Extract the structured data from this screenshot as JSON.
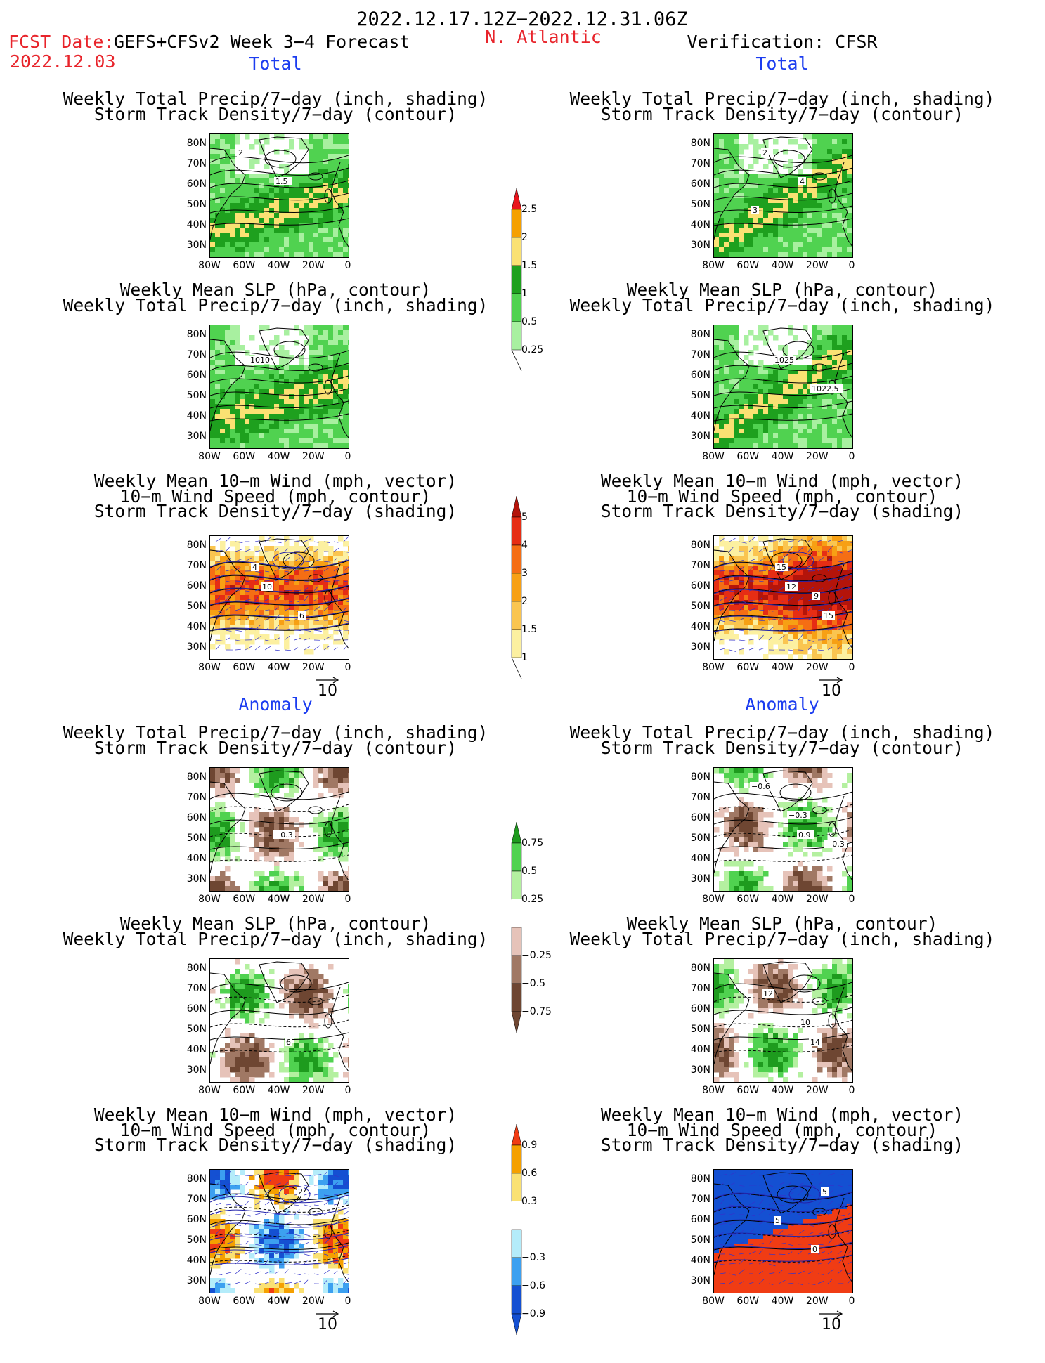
{
  "header": {
    "period": "2022.12.17.12Z−2022.12.31.06Z",
    "fcst_label": "FCST Date:",
    "fcst_model": "GEFS+CFSv2 Week 3−4 Forecast",
    "fcst_date": "2022.12.03",
    "region": "N. Atlantic",
    "verification": "Verification: CFSR"
  },
  "sections": {
    "total_left": "Total",
    "total_right": "Total",
    "anomaly_left": "Anomaly",
    "anomaly_right": "Anomaly"
  },
  "titles": {
    "precip_track": [
      "Weekly Total Precip/7−day (inch, shading)",
      "Storm Track Density/7−day (contour)"
    ],
    "slp_precip": [
      "Weekly Mean SLP (hPa, contour)",
      "Weekly Total Precip/7−day (inch, shading)"
    ],
    "wind_track": [
      "Weekly Mean 10−m Wind (mph, vector)",
      "10−m Wind Speed (mph, contour)",
      "Storm Track Density/7−day (shading)"
    ]
  },
  "axes": {
    "y_ticks": [
      "80N",
      "70N",
      "60N",
      "50N",
      "40N",
      "30N"
    ],
    "x_ticks": [
      "80W",
      "60W",
      "40W",
      "20W",
      "0"
    ]
  },
  "vector_ref": "10",
  "colorbars": {
    "precip_total": {
      "labels": [
        "2.5",
        "2",
        "1.5",
        "1",
        "0.5",
        "0.25"
      ],
      "colors": [
        "#e8141c",
        "#f5a000",
        "#fae173",
        "#1ea01e",
        "#50d250",
        "#a8f0a0"
      ]
    },
    "track_total": {
      "labels": [
        "5",
        "4",
        "3",
        "2",
        "1.5",
        "1"
      ],
      "colors": [
        "#b4140a",
        "#e62d14",
        "#f56e14",
        "#f7a014",
        "#fac550",
        "#fcf0a0"
      ]
    },
    "precip_anom": {
      "labels": [
        "0.75",
        "0.5",
        "0.25",
        "−0.25",
        "−0.5",
        "−0.75"
      ],
      "colors": [
        "#1e9b1e",
        "#50d250",
        "#b4f0a0",
        "#ffffff",
        "#e6c3b9",
        "#a07864",
        "#6e4632"
      ]
    },
    "track_anom": {
      "labels": [
        "0.9",
        "0.6",
        "0.3",
        "−0.3",
        "−0.6",
        "−0.9"
      ],
      "colors": [
        "#f03c14",
        "#f5a000",
        "#fae173",
        "#ffffff",
        "#b4ecfa",
        "#3ca0f0",
        "#1450d2"
      ]
    }
  },
  "panels": [
    {
      "id": "fcst-total-precip-track",
      "annotations": [
        "2",
        "1.5"
      ]
    },
    {
      "id": "verif-total-precip-track",
      "annotations": [
        "2",
        "4",
        "3"
      ]
    },
    {
      "id": "fcst-total-slp-precip",
      "annotations": [
        "1010"
      ]
    },
    {
      "id": "verif-total-slp-precip",
      "annotations": [
        "1025",
        "1022.5"
      ]
    },
    {
      "id": "fcst-total-wind-track",
      "annotations": [
        "10",
        "6",
        "4"
      ]
    },
    {
      "id": "verif-total-wind-track",
      "annotations": [
        "12",
        "15",
        "15",
        "9"
      ]
    },
    {
      "id": "fcst-anom-precip-track",
      "annotations": [
        "−0.3"
      ]
    },
    {
      "id": "verif-anom-precip-track",
      "annotations": [
        "0.9",
        "−0.6",
        "−0.3",
        "−0.3"
      ]
    },
    {
      "id": "fcst-anom-slp-precip",
      "annotations": [
        "6"
      ]
    },
    {
      "id": "verif-anom-slp-precip",
      "annotations": [
        "14",
        "12",
        "10"
      ]
    },
    {
      "id": "fcst-anom-wind-track",
      "annotations": [
        "2"
      ]
    },
    {
      "id": "verif-anom-wind-track",
      "annotations": [
        "5",
        "5",
        "0"
      ]
    }
  ],
  "chart_data": {
    "type": "heatmap",
    "title": "2022.12.17.12Z−2022.12.31.06Z",
    "subtitle": "GEFS+CFSv2 Week 3−4 Forecast vs Verification: CFSR, N. Atlantic",
    "x_range": [
      "80W",
      "0"
    ],
    "y_range": [
      "30N",
      "80N"
    ],
    "legend_placement": "center column between map columns",
    "precip_total_levels": [
      0.25,
      0.5,
      1,
      1.5,
      2,
      2.5
    ],
    "track_total_levels": [
      1,
      1.5,
      2,
      3,
      4,
      5
    ],
    "precip_anom_levels": [
      -0.75,
      -0.5,
      -0.25,
      0.25,
      0.5,
      0.75
    ],
    "track_anom_levels": [
      -0.9,
      -0.6,
      -0.3,
      0.3,
      0.6,
      0.9
    ]
  }
}
